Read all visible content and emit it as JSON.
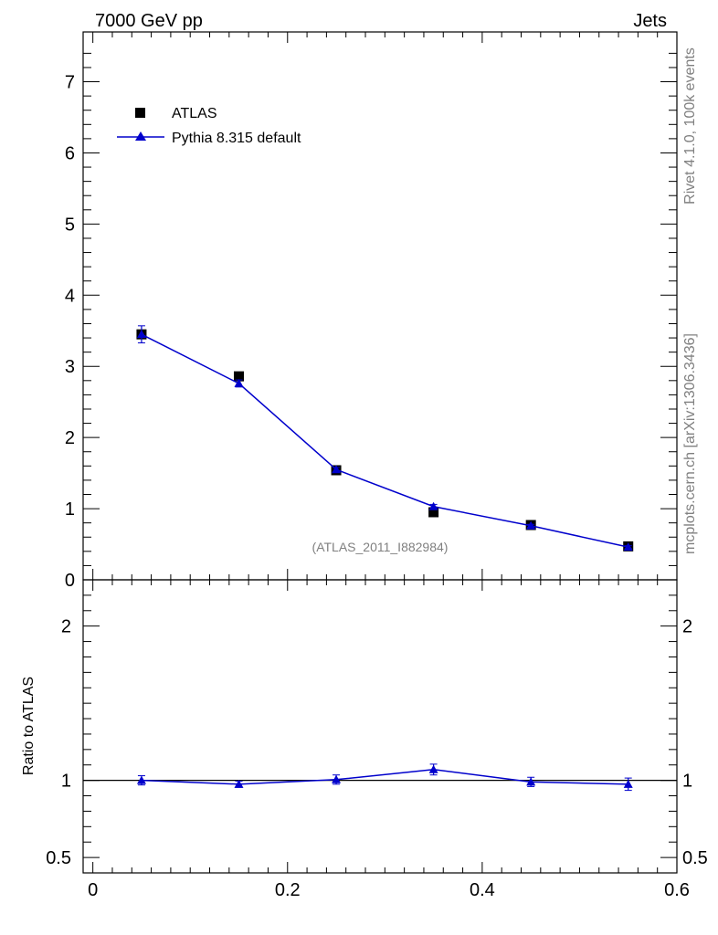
{
  "header": {
    "left": "7000 GeV pp",
    "right": "Jets"
  },
  "side_labels": {
    "top": "Rivet 4.1.0,  100k events",
    "bottom": "mcplots.cern.ch [arXiv:1306.3436]"
  },
  "watermark": "(ATLAS_2011_I882984)",
  "colors": {
    "data": "#000000",
    "mc": "#0000cc",
    "watermark": "#808080"
  },
  "chart_data": [
    {
      "panel": "main",
      "type": "scatter",
      "x": [
        0.05,
        0.15,
        0.25,
        0.35,
        0.45,
        0.55
      ],
      "xlim": [
        -0.01,
        0.6
      ],
      "ylim": [
        0,
        7.7
      ],
      "yticks": [
        0,
        1,
        2,
        3,
        4,
        5,
        6,
        7
      ],
      "ytick_labels": [
        "0",
        "1",
        "2",
        "3",
        "4",
        "5",
        "6",
        "7"
      ],
      "legend_position": "top-left",
      "series": [
        {
          "name": "ATLAS",
          "marker": "square",
          "values": [
            3.45,
            2.86,
            1.54,
            0.95,
            0.77,
            0.47
          ],
          "errors": [
            0.05,
            0.03,
            0.03,
            0.03,
            0.02,
            0.02
          ]
        },
        {
          "name": "Pythia 8.315 default",
          "marker": "triangle",
          "line": true,
          "values": [
            3.45,
            2.76,
            1.55,
            1.03,
            0.76,
            0.46
          ],
          "errors": [
            0.12,
            0.05,
            0.03,
            0.03,
            0.02,
            0.02
          ]
        }
      ]
    },
    {
      "panel": "ratio",
      "type": "line",
      "ylabel": "Ratio to ATLAS",
      "x": [
        0.05,
        0.15,
        0.25,
        0.35,
        0.45,
        0.55
      ],
      "xlim": [
        -0.01,
        0.6
      ],
      "ylim": [
        0.4,
        2.3
      ],
      "yticks": [
        0.5,
        1,
        2
      ],
      "ytick_labels": [
        "0.5",
        "1",
        "2"
      ],
      "xticks": [
        0,
        0.2,
        0.4,
        0.6
      ],
      "xtick_labels": [
        "0",
        "0.2",
        "0.4",
        "0.6"
      ],
      "reference_line": 1,
      "series": [
        {
          "name": "Pythia 8.315 default",
          "values": [
            1.0,
            0.975,
            1.005,
            1.07,
            0.99,
            0.975
          ],
          "errors": [
            0.03,
            0.02,
            0.03,
            0.035,
            0.03,
            0.04
          ]
        }
      ]
    }
  ]
}
